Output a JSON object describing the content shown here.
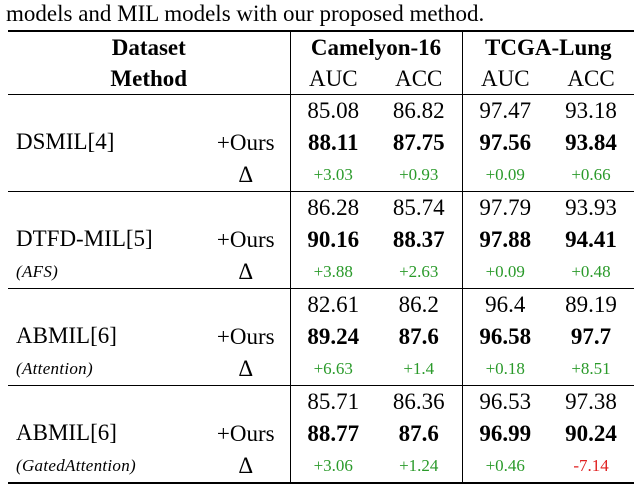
{
  "caption": "models and MIL models with our proposed method.",
  "header": {
    "dataset_label": "Dataset",
    "method_label": "Method",
    "dataset1": "Camelyon-16",
    "dataset2": "TCGA-Lung",
    "auc": "AUC",
    "acc": "ACC"
  },
  "groups": [
    {
      "method": "DSMIL[4]",
      "sub": "",
      "base": [
        "85.08",
        "86.82",
        "97.47",
        "93.18"
      ],
      "ours_label": "+Ours",
      "ours": [
        "88.11",
        "87.75",
        "97.56",
        "93.84"
      ],
      "delta_label": "Δ",
      "delta": [
        "+3.03",
        "+0.93",
        "+0.09",
        "+0.66"
      ]
    },
    {
      "method": "DTFD-MIL[5]",
      "sub": "(AFS)",
      "base": [
        "86.28",
        "85.74",
        "97.79",
        "93.93"
      ],
      "ours_label": "+Ours",
      "ours": [
        "90.16",
        "88.37",
        "97.88",
        "94.41"
      ],
      "delta_label": "Δ",
      "delta": [
        "+3.88",
        "+2.63",
        "+0.09",
        "+0.48"
      ]
    },
    {
      "method": "ABMIL[6]",
      "sub": "(Attention)",
      "base": [
        "82.61",
        "86.2",
        "96.4",
        "89.19"
      ],
      "ours_label": "+Ours",
      "ours": [
        "89.24",
        "87.6",
        "96.58",
        "97.7"
      ],
      "delta_label": "Δ",
      "delta": [
        "+6.63",
        "+1.4",
        "+0.18",
        "+8.51"
      ]
    },
    {
      "method": "ABMIL[6]",
      "sub": "(GatedAttention)",
      "base": [
        "85.71",
        "86.36",
        "96.53",
        "97.38"
      ],
      "ours_label": "+Ours",
      "ours": [
        "88.77",
        "87.6",
        "96.99",
        "90.24"
      ],
      "delta_label": "Δ",
      "delta": [
        "+3.06",
        "+1.24",
        "+0.46",
        "-7.14"
      ]
    }
  ],
  "colors": {
    "positive": "#2a9a2a",
    "negative": "#e02020"
  }
}
